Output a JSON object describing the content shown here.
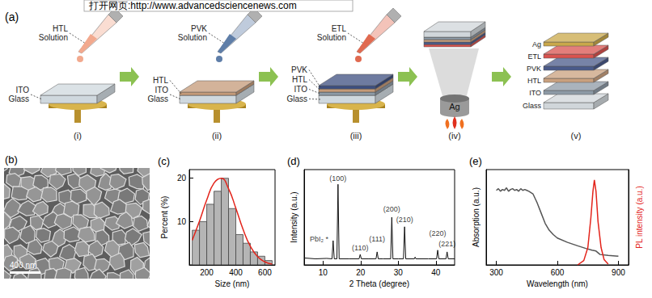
{
  "watermark": "打开网页:http://www.advancedsciencenews.com",
  "panel_a": {
    "label": "(a)",
    "steps": [
      {
        "numeral": "(i)",
        "solution": {
          "text": "HTL Solution",
          "color": "#f2a98e"
        },
        "layers": [
          {
            "text": "ITO Glass",
            "color": "#cfd8de"
          }
        ]
      },
      {
        "numeral": "(ii)",
        "solution": {
          "text": "PVK Solution",
          "color": "#5f7ea8"
        },
        "layers": [
          {
            "text": "HTL",
            "color": "#c49a78"
          },
          {
            "text": "ITO Glass",
            "color": "#cfd8de"
          }
        ]
      },
      {
        "numeral": "(iii)",
        "solution": {
          "text": "ETL Solution",
          "color": "#e06a50"
        },
        "layers": [
          {
            "text": "PVK",
            "color": "#3d4f80"
          },
          {
            "text": "HTL",
            "color": "#c49a78"
          },
          {
            "text": "ITO",
            "color": "#8d9aa6"
          },
          {
            "text": "Glass",
            "color": "#cfd8de"
          }
        ]
      },
      {
        "numeral": "(iv)",
        "source": {
          "text": "Ag",
          "color": "#9a9a9a"
        }
      },
      {
        "numeral": "(v)",
        "stack": [
          {
            "text": "Ag",
            "color": "#c9a84a"
          },
          {
            "text": "ETL",
            "color": "#d9534f"
          },
          {
            "text": "PVK",
            "color": "#4a5a8a"
          },
          {
            "text": "HTL",
            "color": "#c9a07e"
          },
          {
            "text": "ITO",
            "color": "#8d9aa6"
          },
          {
            "text": "Glass",
            "color": "#d0d6da"
          }
        ]
      }
    ]
  },
  "panel_b": {
    "label": "(b)",
    "scale_bar": "400 nm"
  },
  "chart_data": [
    {
      "type": "histogram",
      "title": "(c)",
      "xlabel": "Size (nm)",
      "ylabel": "Percent (%)",
      "bins": [
        100,
        150,
        200,
        250,
        300,
        350,
        400,
        450,
        500,
        550,
        600,
        650
      ],
      "values": [
        8,
        10,
        14,
        17,
        20,
        13,
        7,
        5,
        3,
        2,
        1
      ],
      "color": "#b5b5b5",
      "fit": {
        "type": "line",
        "x": [
          100,
          150,
          200,
          250,
          300,
          350,
          400,
          450,
          500,
          550,
          600,
          650
        ],
        "values": [
          5.7,
          10.1,
          15.0,
          18.9,
          20.0,
          17.6,
          13.1,
          8.2,
          4.3,
          1.9,
          0.7,
          0.2
        ],
        "color": "#e3241b"
      },
      "xlim": [
        80,
        670
      ],
      "xticks": [
        200,
        400,
        600
      ],
      "ylim": [
        0,
        22
      ],
      "yticks": [
        10,
        20
      ],
      "grid": false
    },
    {
      "type": "line",
      "title": "(d)",
      "xlabel": "2 Theta (degree)",
      "ylabel": "Intensity (a.u.)",
      "x": [
        5,
        8,
        11,
        12.4,
        12.7,
        13.0,
        13.7,
        14.0,
        14.3,
        17,
        19.6,
        19.9,
        20.2,
        22,
        24.1,
        24.4,
        24.7,
        26,
        28.0,
        28.3,
        28.6,
        30,
        31.4,
        31.7,
        32.0,
        34.3,
        34.5,
        34.7,
        38,
        40.2,
        40.5,
        40.8,
        42.7,
        43.0,
        43.3,
        45
      ],
      "values": [
        0.08,
        0.07,
        0.075,
        0.07,
        0.28,
        0.07,
        0.07,
        0.93,
        0.07,
        0.07,
        0.07,
        0.12,
        0.07,
        0.07,
        0.07,
        0.15,
        0.07,
        0.07,
        0.07,
        0.55,
        0.07,
        0.07,
        0.07,
        0.44,
        0.07,
        0.07,
        0.09,
        0.07,
        0.07,
        0.07,
        0.17,
        0.07,
        0.07,
        0.15,
        0.07,
        0.07
      ],
      "color": "#111111",
      "xlim": [
        5,
        45
      ],
      "xticks": [
        10,
        20,
        30,
        40
      ],
      "ylim": [
        0,
        1.1
      ],
      "tick_labels": "x",
      "grid": false,
      "annotations": [
        {
          "text": "PbI₂ *",
          "x": 9,
          "y": 0.3
        },
        {
          "text": "(100)",
          "x": 14.0,
          "y": 1.0
        },
        {
          "text": "(110)",
          "x": 19.9,
          "y": 0.2
        },
        {
          "text": "(111)",
          "x": 24.4,
          "y": 0.3
        },
        {
          "text": "(200)",
          "x": 28.3,
          "y": 0.64
        },
        {
          "text": "(210)",
          "x": 31.7,
          "y": 0.52
        },
        {
          "text": "(220)",
          "x": 40.5,
          "y": 0.36
        },
        {
          "text": "(221)",
          "x": 43.0,
          "y": 0.24
        }
      ]
    },
    {
      "type": "line",
      "title": "(e)",
      "xlabel": "Wavelength (nm)",
      "ylabel": "Absorption (a.u.)",
      "y2label": "PL intensity (a.u.)",
      "xlim": [
        250,
        950
      ],
      "xticks": [
        300,
        600,
        900
      ],
      "ylim": [
        0,
        1.1
      ],
      "y2lim": [
        0,
        1.1
      ],
      "tick_labels": "x",
      "grid": false,
      "series": [
        {
          "color": "#555555",
          "x": [
            300,
            310,
            320,
            330,
            340,
            350,
            360,
            370,
            380,
            390,
            400,
            410,
            420,
            430,
            440,
            450,
            460,
            480,
            500,
            520,
            540,
            560,
            580,
            600,
            650,
            700,
            740,
            770,
            790,
            810,
            850,
            900
          ],
          "values": [
            0.86,
            0.88,
            0.85,
            0.87,
            0.86,
            0.89,
            0.85,
            0.87,
            0.88,
            0.86,
            0.87,
            0.85,
            0.88,
            0.86,
            0.87,
            0.86,
            0.85,
            0.82,
            0.72,
            0.6,
            0.48,
            0.4,
            0.35,
            0.31,
            0.26,
            0.22,
            0.19,
            0.17,
            0.16,
            0.12,
            0.11,
            0.1
          ]
        },
        {
          "color": "#e3241b",
          "axis": "y2",
          "x": [
            700,
            730,
            750,
            765,
            775,
            782,
            790,
            800,
            815,
            830,
            850
          ],
          "values": [
            0,
            0.05,
            0.2,
            0.55,
            0.85,
            0.98,
            0.85,
            0.5,
            0.2,
            0.06,
            0.01
          ]
        }
      ]
    }
  ]
}
